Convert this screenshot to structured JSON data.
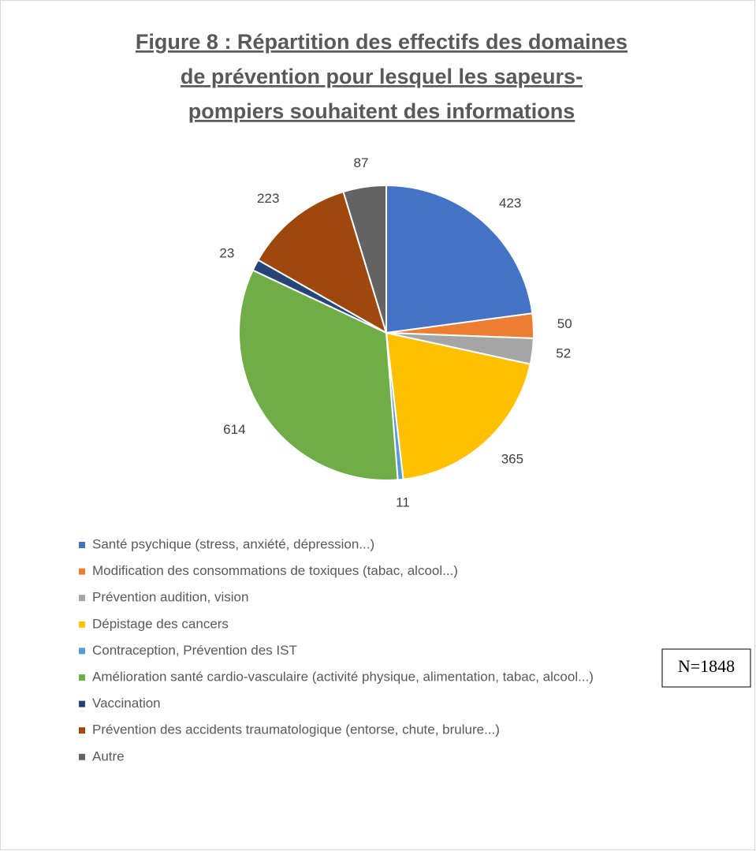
{
  "chart_data": {
    "type": "pie",
    "title": [
      "Figure 8 : Répartition des effectifs des domaines",
      "de prévention pour lesquel les sapeurs-",
      "pompiers souhaitent des informations"
    ],
    "categories": [
      "Santé psychique (stress, anxiété, dépression...)",
      "Modification des consommations de toxiques (tabac, alcool...)",
      "Prévention audition, vision",
      "Dépistage des cancers",
      "Contraception, Prévention des IST",
      "Amélioration santé cardio-vasculaire (activité physique, alimentation, tabac, alcool...)",
      "Vaccination",
      "Prévention des accidents traumatologique (entorse, chute, brulure...)",
      "Autre"
    ],
    "values": [
      423,
      50,
      52,
      365,
      11,
      614,
      23,
      223,
      87
    ],
    "colors": [
      "#4472c4",
      "#ed7d31",
      "#a5a5a5",
      "#ffc000",
      "#5b9bd5",
      "#70ad47",
      "#264478",
      "#9e480e",
      "#636363"
    ],
    "legend": "bottom",
    "annotation": "N=1848"
  }
}
